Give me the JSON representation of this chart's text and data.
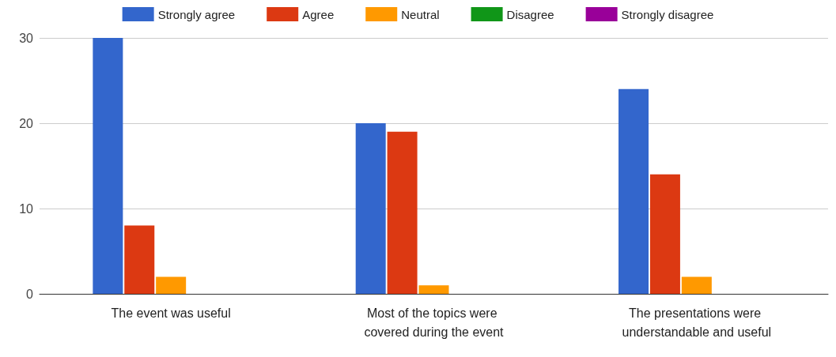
{
  "chart_data": {
    "type": "bar",
    "categories": [
      "The event was useful",
      "Most of the topics were covered during the event",
      "The presentations were understandable and useful"
    ],
    "series": [
      {
        "name": "Strongly agree",
        "color": "#3366cc",
        "values": [
          30,
          20,
          24
        ]
      },
      {
        "name": "Agree",
        "color": "#dc3912",
        "values": [
          8,
          19,
          14
        ]
      },
      {
        "name": "Neutral",
        "color": "#ff9900",
        "values": [
          2,
          1,
          2
        ]
      },
      {
        "name": "Disagree",
        "color": "#109618",
        "values": [
          0,
          0,
          0
        ]
      },
      {
        "name": "Strongly disagree",
        "color": "#990099",
        "values": [
          0,
          0,
          0
        ]
      }
    ],
    "ylim": [
      0,
      30
    ],
    "yticks": [
      0,
      10,
      20,
      30
    ],
    "grid": "y",
    "legend": "top"
  }
}
